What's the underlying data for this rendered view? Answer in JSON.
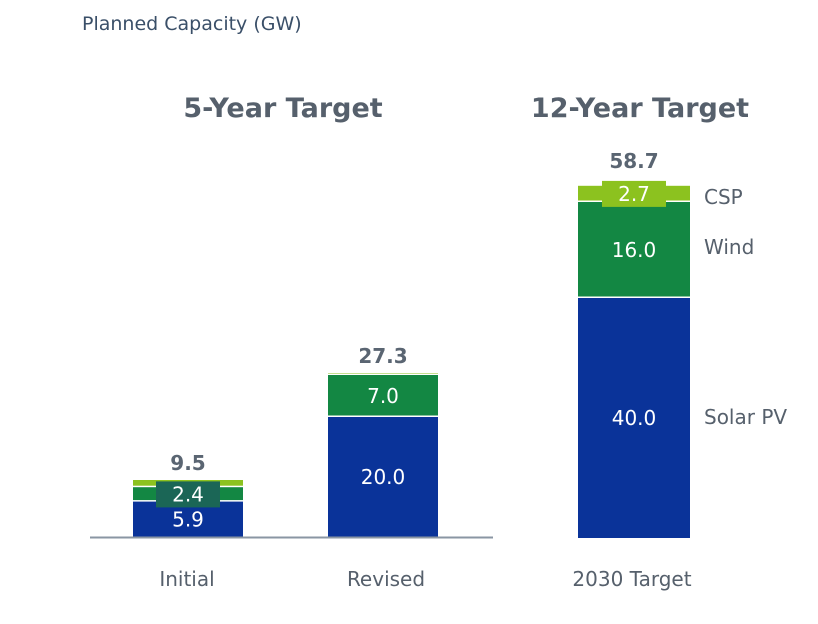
{
  "chart_data": {
    "type": "bar",
    "stacked": true,
    "title": "Planned Capacity (GW)",
    "ylabel": "Planned Capacity (GW)",
    "xlabel": "",
    "ylim": [
      0,
      62
    ],
    "grid": false,
    "groups": [
      {
        "title": "5-Year Target",
        "categories": [
          "Initial",
          "Revised"
        ]
      },
      {
        "title": "12-Year Target",
        "categories": [
          "2030 Target"
        ]
      }
    ],
    "categories": [
      "Initial",
      "Revised",
      "2030 Target"
    ],
    "totals": [
      9.5,
      27.3,
      58.7
    ],
    "total_labels": [
      "9.5",
      "27.3",
      "58.7"
    ],
    "series": [
      {
        "name": "Solar PV",
        "color": "#0a3399",
        "values": [
          5.9,
          20.0,
          40.0
        ],
        "labels": [
          "5.9",
          "20.0",
          "40.0"
        ]
      },
      {
        "name": "Wind",
        "color": "#138743",
        "values": [
          2.4,
          7.0,
          16.0
        ],
        "labels": [
          "2.4",
          "7.0",
          "16.0"
        ],
        "label_box_color": "#1b6656"
      },
      {
        "name": "CSP",
        "color": "#8cc21f",
        "values": [
          1.2,
          0.3,
          2.7
        ],
        "labels": [
          "",
          "",
          "2.7"
        ]
      }
    ],
    "legend": {
      "placement": "right-of-last-bar",
      "entries": [
        "CSP",
        "Wind",
        "Solar PV"
      ]
    }
  }
}
